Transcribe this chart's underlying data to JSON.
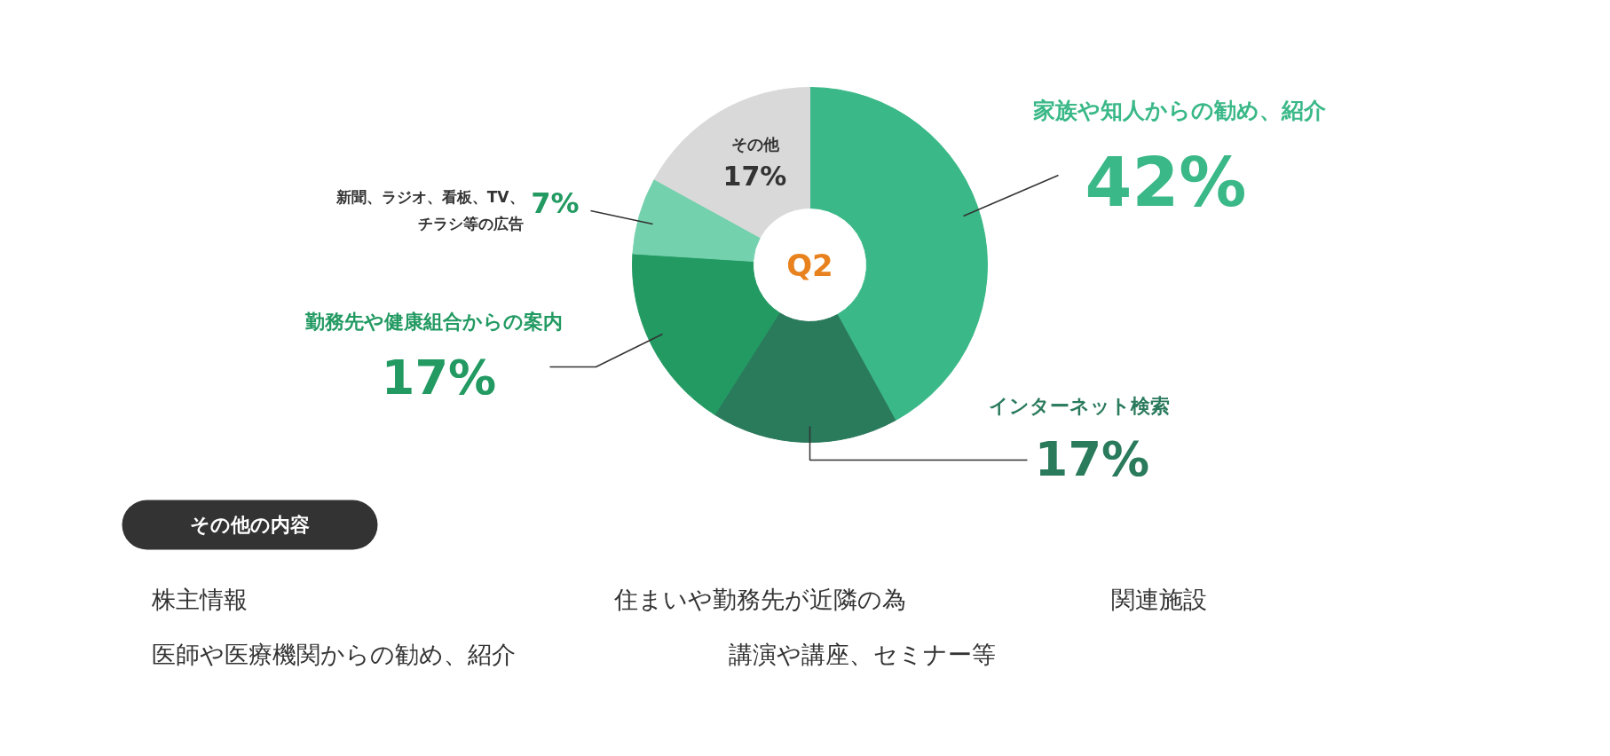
{
  "chart_data": {
    "type": "donut",
    "title": "Q2",
    "categories": [
      "家族や知人からの勧め、紹介",
      "インターネット検索",
      "勤務先や健康組合からの案内",
      "新聞、ラジオ、看板、TV、チラシ等の広告",
      "その他"
    ],
    "values": [
      42,
      17,
      17,
      7,
      17
    ],
    "colors": [
      "#3ab887",
      "#2a7a5c",
      "#229a62",
      "#74d1ae",
      "#d9d9d9"
    ],
    "value_labels": [
      "42%",
      "17%",
      "17%",
      "7%",
      "17%"
    ],
    "annotations": [
      "その他の内容",
      "株主情報",
      "住まいや勤務先が近隣の為",
      "関連施設",
      "医師や医療機関からの勧め、紹介",
      "講演や講座、セミナー等"
    ]
  }
}
